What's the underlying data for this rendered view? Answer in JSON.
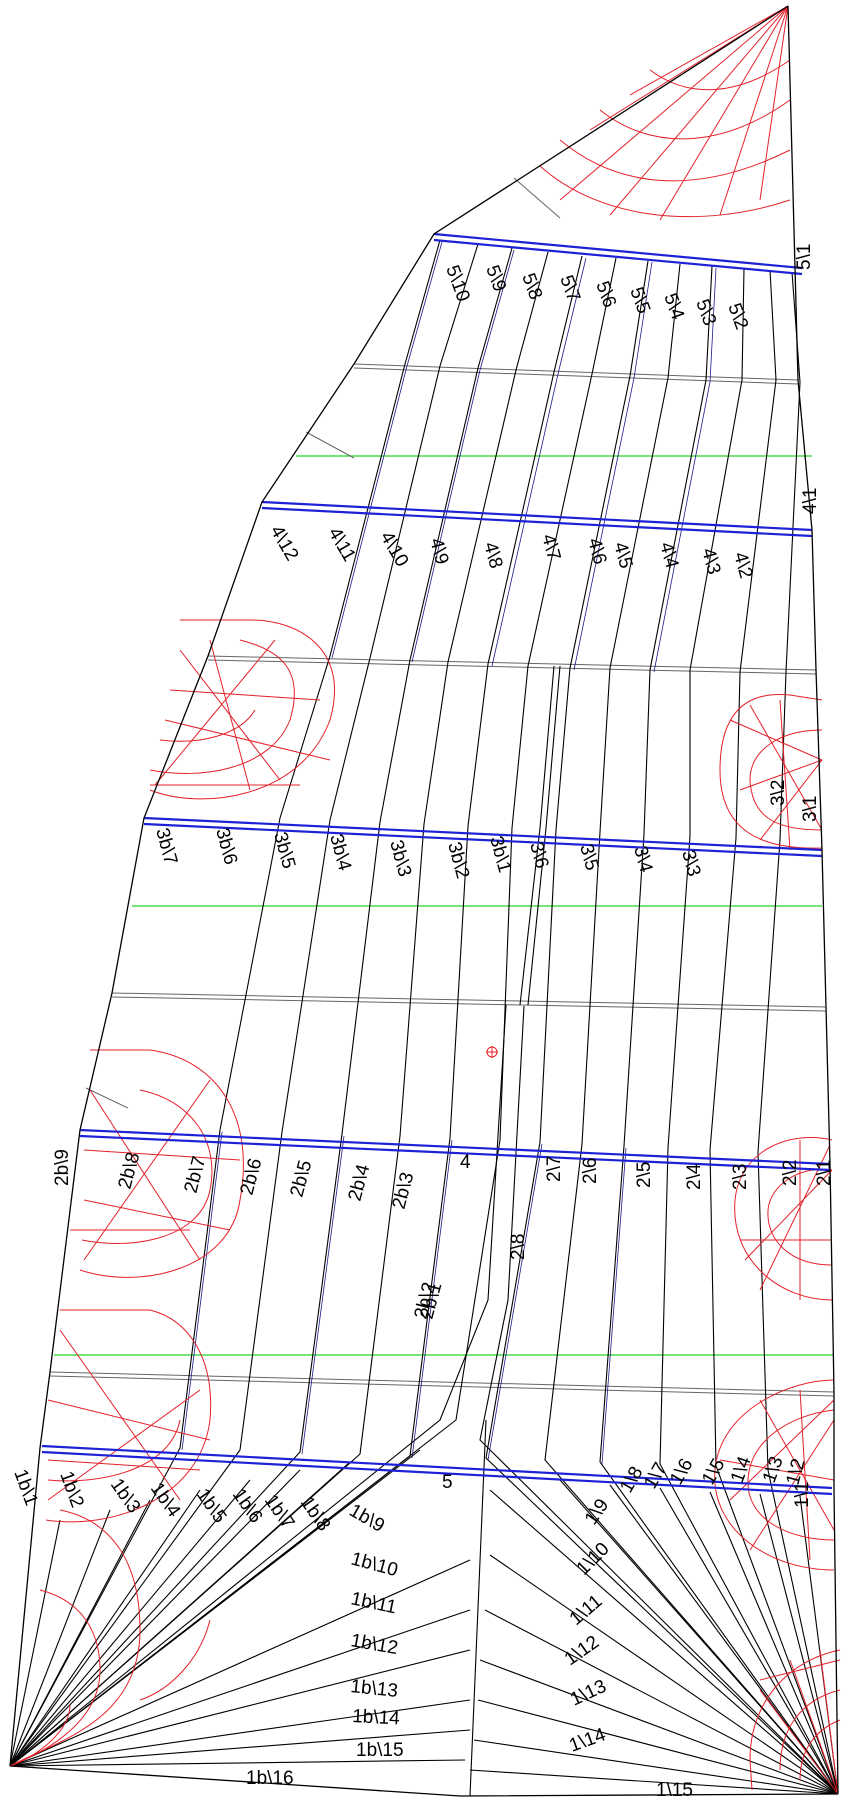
{
  "labels": {
    "panel_5": [
      "5\\10",
      "5\\9",
      "5\\8",
      "5\\7",
      "5\\6",
      "5\\5",
      "5\\4",
      "5\\3",
      "5\\2",
      "5\\1"
    ],
    "panel_4": [
      "4\\12",
      "4\\11",
      "4\\10",
      "4\\9",
      "4\\8",
      "4\\7",
      "4\\6",
      "4\\5",
      "4\\4",
      "4\\3",
      "4\\2",
      "4\\1"
    ],
    "panel_3b": [
      "3b\\7",
      "3b\\6",
      "3b\\5",
      "3b\\4",
      "3b\\3",
      "3b\\2",
      "3b\\1"
    ],
    "panel_3": [
      "3\\6",
      "3\\5",
      "3\\4",
      "3\\3",
      "3\\2",
      "3\\1"
    ],
    "panel_2b": [
      "2b\\9",
      "2b\\8",
      "2b\\7",
      "2b\\6",
      "2b\\5",
      "2b\\4",
      "2b\\3",
      "2b\\2",
      "2b\\1"
    ],
    "panel_2": [
      "2\\8",
      "2\\7",
      "2\\6",
      "2\\5",
      "2\\4",
      "2\\3",
      "2\\2",
      "2\\1"
    ],
    "panel_1b": [
      "1b\\1",
      "1b\\2",
      "1b\\3",
      "1b\\4",
      "1b\\5",
      "1b\\6",
      "1b\\7",
      "1b\\8",
      "1b\\9",
      "1b\\10",
      "1b\\11",
      "1b\\12",
      "1b\\13",
      "1b\\14",
      "1b\\15",
      "1b\\16"
    ],
    "panel_1": [
      "1\\1",
      "1\\2",
      "1\\3",
      "1\\4",
      "1\\5",
      "1\\6",
      "1\\7",
      "1\\8",
      "1\\9",
      "1\\10",
      "1\\11",
      "1\\12",
      "1\\13",
      "1\\14",
      "1\\15"
    ],
    "section_numbers": [
      "5",
      "4"
    ]
  },
  "colors": {
    "outline": "#000000",
    "reinforcement": "#e5202a",
    "batten_lines": "#1d22d6",
    "reference_lines": "#25d425"
  }
}
